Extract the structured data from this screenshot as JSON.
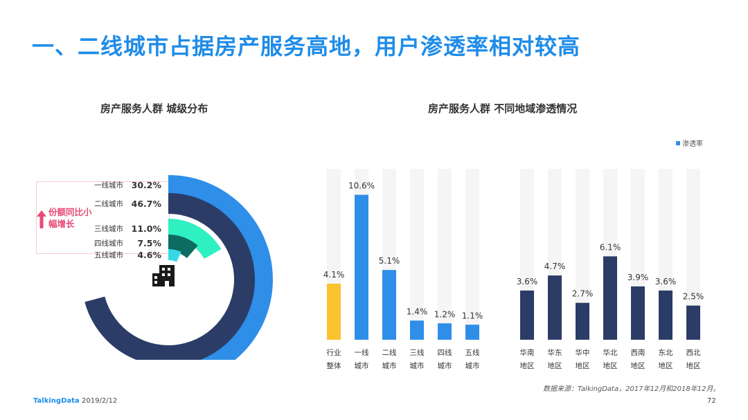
{
  "title": "一、二线城市占据房产服务高地，用户渗透率相对较高",
  "left_chart_title": "房产服务人群  城级分布",
  "right_chart_title": "房产服务人群  不同地域渗透情况",
  "callout_text": "份额同比小幅增长",
  "legend_label": "渗透率",
  "source": "数据来源：TalkingData，2017年12月和2018年12月。",
  "footer": {
    "brand": "TalkingData",
    "date": "2019/2/12",
    "page": "72"
  },
  "colors": {
    "title": "#1f8ce8",
    "blue": "#2e8ee8",
    "navy": "#2b3d66",
    "teal": "#2ef0c0",
    "darkteal": "#0d6b62",
    "cyan": "#37d8e6",
    "yellow": "#f9c22e",
    "track": "#f5f5f5",
    "pink": "#e64a76"
  },
  "chart_data": [
    {
      "type": "radial-bar",
      "title": "房产服务人群  城级分布",
      "categories": [
        "一线城市",
        "二线城市",
        "三线城市",
        "四线城市",
        "五线城市"
      ],
      "values": [
        30.2,
        46.7,
        11.0,
        7.5,
        4.6
      ],
      "labels": [
        "30.2%",
        "46.7%",
        "11.0%",
        "7.5%",
        "4.6%"
      ],
      "unit": "%"
    },
    {
      "type": "bar",
      "title": "房产服务人群  不同地域渗透情况",
      "legend": "渗透率",
      "groups": [
        {
          "categories": [
            "行业\n整体",
            "一线\n城市",
            "二线\n城市",
            "三线\n城市",
            "四线\n城市",
            "五线\n城市"
          ],
          "values": [
            4.1,
            10.6,
            5.1,
            1.4,
            1.2,
            1.1
          ],
          "labels": [
            "4.1%",
            "10.6%",
            "5.1%",
            "1.4%",
            "1.2%",
            "1.1%"
          ]
        },
        {
          "categories": [
            "华南\n地区",
            "华东\n地区",
            "华中\n地区",
            "华北\n地区",
            "西南\n地区",
            "东北\n地区",
            "西北\n地区"
          ],
          "values": [
            3.6,
            4.7,
            2.7,
            6.1,
            3.9,
            3.6,
            2.5
          ],
          "labels": [
            "3.6%",
            "4.7%",
            "2.7%",
            "6.1%",
            "3.9%",
            "3.6%",
            "2.5%"
          ]
        }
      ],
      "ylim": [
        0,
        12.5
      ]
    }
  ]
}
